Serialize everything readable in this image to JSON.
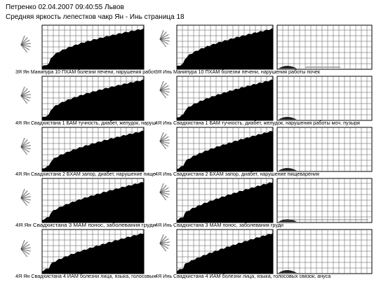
{
  "header": {
    "line1": "Петренко 02.04.2007 09:40:55 Львов",
    "line2": "Средняя яркость лепестков чакр Ян - Инь страница 18"
  },
  "rows": [
    {
      "yang_caption": "3Я Ян Манипура 10 ПХАМ болезни печени, нарушения работ",
      "yin_caption": "3Я Инь Манипура 10 ПХАМ болезни печени, нарушения работы почек"
    },
    {
      "yang_caption": "4Я Ян Свадхистана 1 БАМ тучность, диабет, желудок, наруш",
      "yin_caption": "4Я Инь Свадхистана 1 БАМ тучность, диабет, желудок, нарушения работы моч. пузыря"
    },
    {
      "yang_caption": "4Я Ян Свадхистана 2 БХАМ запор, диабет, нарушение пище",
      "yin_caption": "4Я Инь Свадхистана 2 БХАМ запор, диабет, нарушение пищеварения"
    },
    {
      "yang_caption": "4Я Ян Свадхистана 3 МАМ понос, заболевания груди",
      "yin_caption": "4Я Инь Свадхистана 3 МАМ понос, заболевания груди"
    },
    {
      "yang_caption": "4Я Ян Свадхистана 4 ЙАМ болезни лица, языка, голосовых",
      "yin_caption": "4Я Инь Свадхистана 4 ЙАМ болезни лица, языка, голосовых связок, ануса"
    }
  ]
}
